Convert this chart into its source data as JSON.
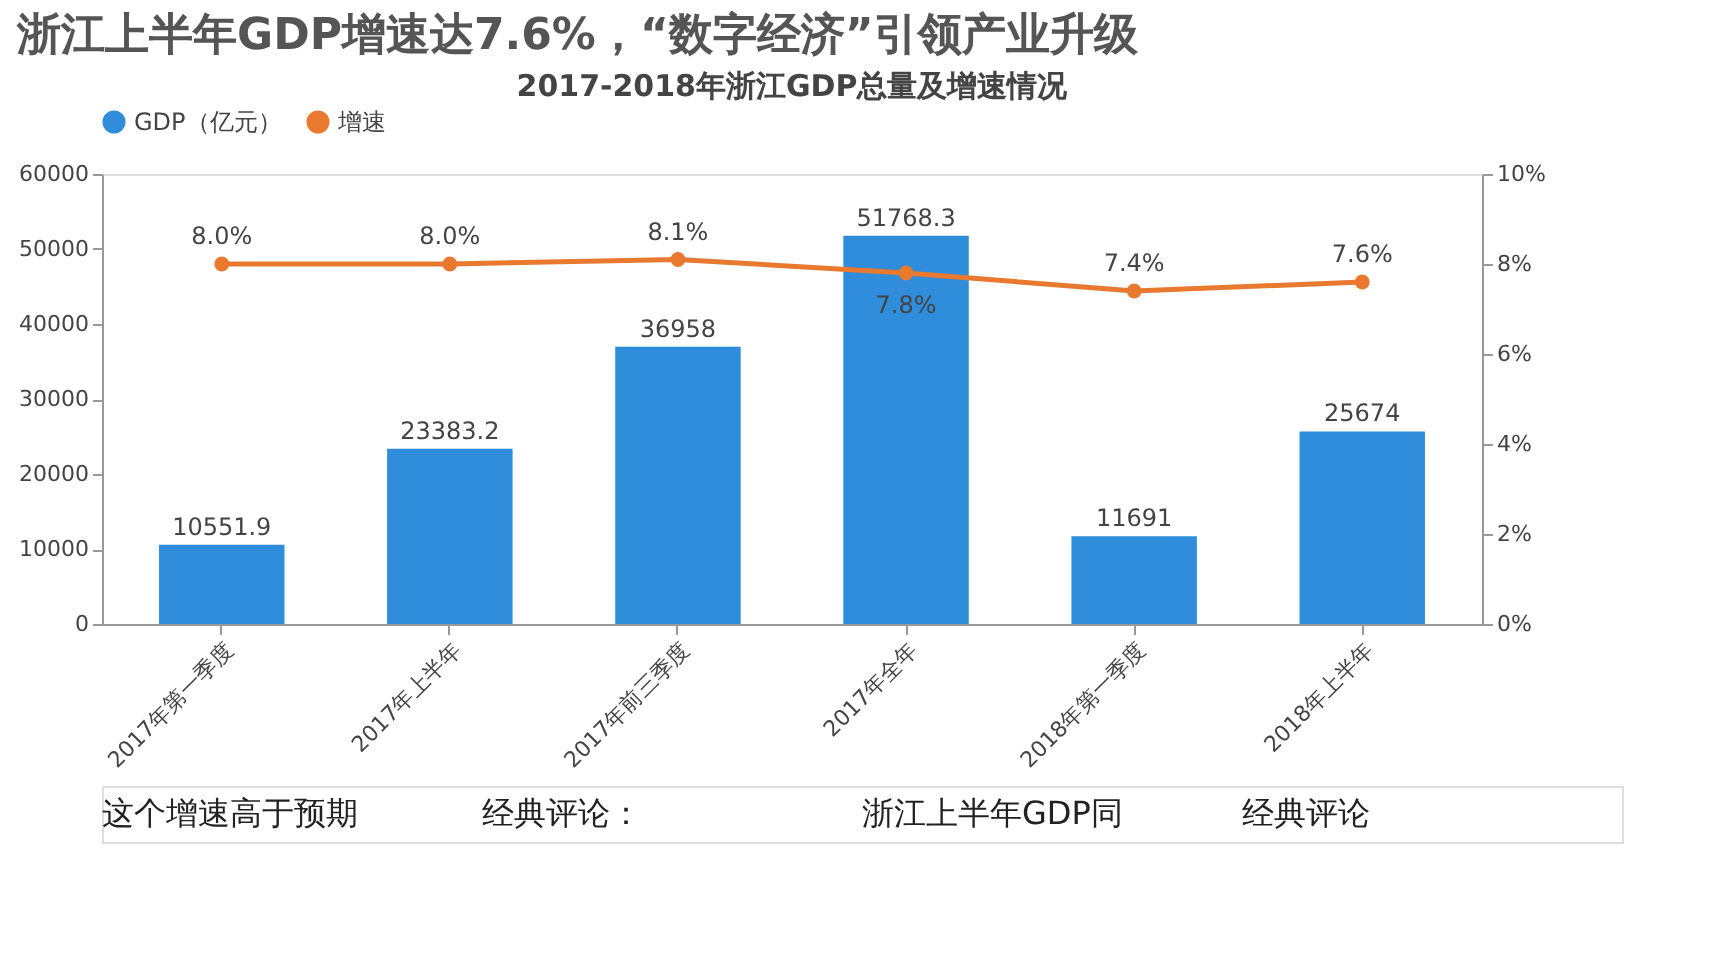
{
  "chart_data": {
    "type": "bar",
    "title": "浙江上半年GDP增速达7.6%，“数字经济”引领产业升级",
    "subtitle": "2017-2018年浙江GDP总量及增速情况",
    "categories": [
      "2017年第一季度",
      "2017年上半年",
      "2017年前三季度",
      "2017年全年",
      "2018年第一季度",
      "2018年上半年"
    ],
    "series": [
      {
        "name": "GDP（亿元）",
        "color": "#2f8ddb",
        "values": [
          10551.9,
          23383.2,
          36958,
          51768.3,
          11691,
          25674
        ],
        "value_labels": [
          "10551.9",
          "23383.2",
          "36958",
          "51768.3",
          "11691",
          "25674"
        ]
      },
      {
        "name": "增速",
        "type": "line",
        "axis": "y2",
        "color": "#e8792f",
        "values": [
          8.0,
          8.0,
          8.1,
          7.8,
          7.4,
          7.6
        ],
        "value_labels": [
          "8.0%",
          "8.0%",
          "8.1%",
          "7.8%",
          "7.4%",
          "7.6%"
        ]
      }
    ],
    "ylim": [
      0,
      60000
    ],
    "yticks": [
      0,
      10000,
      20000,
      30000,
      40000,
      50000,
      60000
    ],
    "y2lim": [
      0,
      10
    ],
    "y2ticks": [
      {
        "value": 0,
        "label": "0%"
      },
      {
        "value": 2,
        "label": "2%"
      },
      {
        "value": 4,
        "label": "4%"
      },
      {
        "value": 6,
        "label": "6%"
      },
      {
        "value": 8,
        "label": "8%"
      },
      {
        "value": 10,
        "label": "10%"
      }
    ],
    "legend": "top",
    "grid": false,
    "marker": "circle",
    "annotations": [
      "这个增速高于预期",
      "经典评论：",
      "浙江上半年GDP同",
      "经典评论"
    ]
  }
}
